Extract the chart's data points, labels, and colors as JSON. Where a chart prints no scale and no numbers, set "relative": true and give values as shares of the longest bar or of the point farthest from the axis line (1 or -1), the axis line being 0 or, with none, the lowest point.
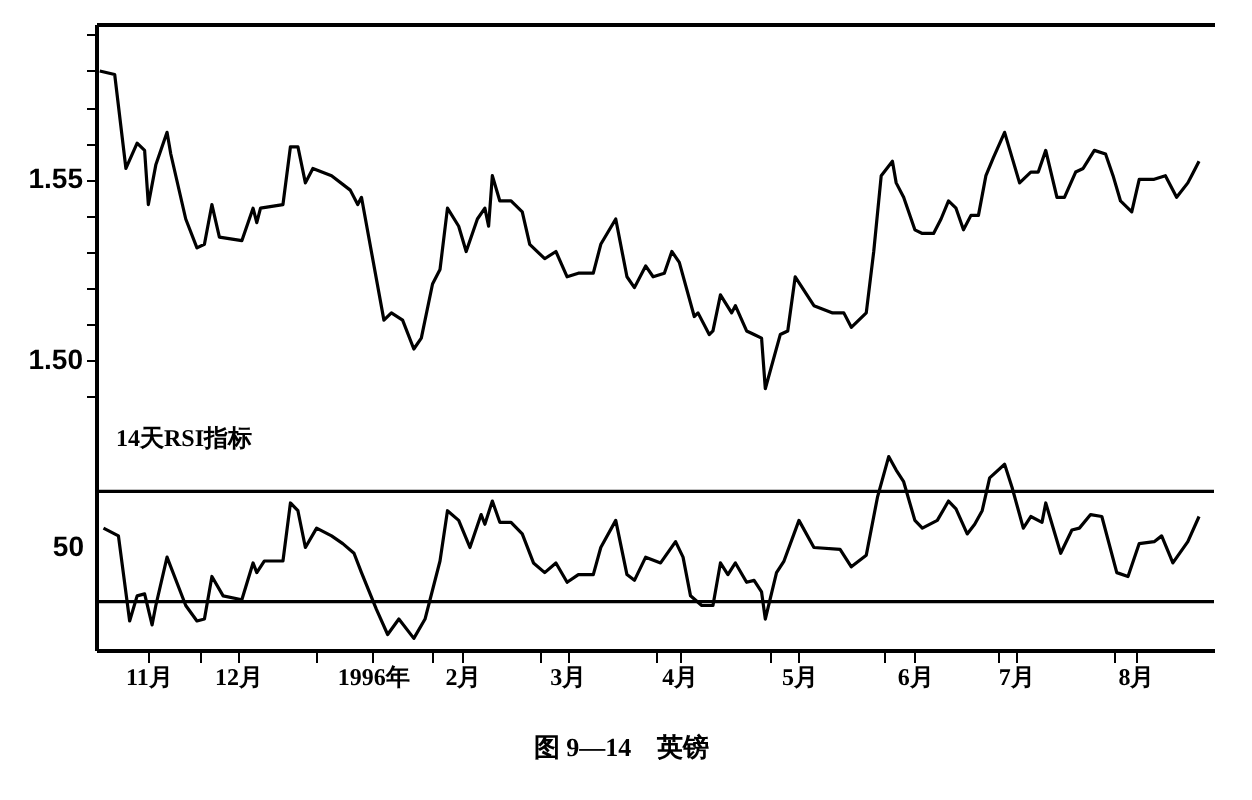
{
  "chart_data": [
    {
      "type": "line",
      "color": "#000000",
      "tick_labels": "y",
      "xlim": [
        "1995-11-03",
        "1996-08-28"
      ],
      "ylim": [
        1.485,
        1.593
      ],
      "yticks": [
        {
          "value": 1.49,
          "label": null
        },
        {
          "value": 1.5,
          "label": "1.50"
        },
        {
          "value": 1.51,
          "label": null
        },
        {
          "value": 1.52,
          "label": null
        },
        {
          "value": 1.53,
          "label": null
        },
        {
          "value": 1.54,
          "label": null
        },
        {
          "value": 1.55,
          "label": "1.55"
        },
        {
          "value": 1.56,
          "label": null
        },
        {
          "value": 1.57,
          "label": null
        },
        {
          "value": 1.58,
          "label": null
        },
        {
          "value": 1.59,
          "label": null
        }
      ],
      "x": [
        "1995-11-04",
        "1995-11-08",
        "1995-11-11",
        "1995-11-14",
        "1995-11-16",
        "1995-11-17",
        "1995-11-19",
        "1995-11-22",
        "1995-11-23",
        "1995-11-27",
        "1995-11-30",
        "1995-12-02",
        "1995-12-04",
        "1995-12-06",
        "1995-12-12",
        "1995-12-15",
        "1995-12-16",
        "1995-12-17",
        "1995-12-23",
        "1995-12-25",
        "1995-12-27",
        "1995-12-29",
        "1995-12-31",
        "1996-01-05",
        "1996-01-10",
        "1996-01-12",
        "1996-01-13",
        "1996-01-19",
        "1996-01-21",
        "1996-01-24",
        "1996-01-27",
        "1996-01-29",
        "1996-02-01",
        "1996-02-03",
        "1996-02-05",
        "1996-02-08",
        "1996-02-10",
        "1996-02-13",
        "1996-02-15",
        "1996-02-16",
        "1996-02-17",
        "1996-02-19",
        "1996-02-22",
        "1996-02-25",
        "1996-02-27",
        "1996-03-02",
        "1996-03-05",
        "1996-03-08",
        "1996-03-11",
        "1996-03-15",
        "1996-03-17",
        "1996-03-21",
        "1996-03-24",
        "1996-03-26",
        "1996-03-29",
        "1996-03-31",
        "1996-04-03",
        "1996-04-05",
        "1996-04-07",
        "1996-04-11",
        "1996-04-12",
        "1996-04-15",
        "1996-04-16",
        "1996-04-18",
        "1996-04-21",
        "1996-04-22",
        "1996-04-25",
        "1996-04-27",
        "1996-04-29",
        "1996-04-30",
        "1996-05-04",
        "1996-05-06",
        "1996-05-08",
        "1996-05-13",
        "1996-05-18",
        "1996-05-21",
        "1996-05-23",
        "1996-05-27",
        "1996-05-29",
        "1996-05-31",
        "1996-06-03",
        "1996-06-04",
        "1996-06-06",
        "1996-06-09",
        "1996-06-11",
        "1996-06-14",
        "1996-06-16",
        "1996-06-18",
        "1996-06-20",
        "1996-06-22",
        "1996-06-24",
        "1996-06-26",
        "1996-06-28",
        "1996-06-30",
        "1996-07-03",
        "1996-07-05",
        "1996-07-07",
        "1996-07-10",
        "1996-07-12",
        "1996-07-14",
        "1996-07-17",
        "1996-07-19",
        "1996-07-22",
        "1996-07-24",
        "1996-07-27",
        "1996-07-30",
        "1996-08-01",
        "1996-08-03",
        "1996-08-06",
        "1996-08-08",
        "1996-08-12",
        "1996-08-15",
        "1996-08-18",
        "1996-08-21",
        "1996-08-22",
        "1996-08-24"
      ],
      "values": [
        1.58,
        1.579,
        1.553,
        1.56,
        1.558,
        1.543,
        1.554,
        1.563,
        1.557,
        1.539,
        1.531,
        1.532,
        1.543,
        1.534,
        1.533,
        1.542,
        1.538,
        1.542,
        1.543,
        1.559,
        1.559,
        1.549,
        1.553,
        1.551,
        1.547,
        1.543,
        1.545,
        1.511,
        1.513,
        1.511,
        1.503,
        1.506,
        1.521,
        1.525,
        1.542,
        1.537,
        1.53,
        1.539,
        1.542,
        1.537,
        1.551,
        1.544,
        1.544,
        1.541,
        1.532,
        1.528,
        1.53,
        1.523,
        1.524,
        1.524,
        1.532,
        1.539,
        1.523,
        1.52,
        1.526,
        1.523,
        1.524,
        1.53,
        1.527,
        1.512,
        1.513,
        1.507,
        1.508,
        1.518,
        1.513,
        1.515,
        1.508,
        1.507,
        1.506,
        1.492,
        1.507,
        1.508,
        1.523,
        1.515,
        1.513,
        1.513,
        1.509,
        1.513,
        1.53,
        1.551,
        1.555,
        1.549,
        1.545,
        1.536,
        1.535,
        1.535,
        1.539,
        1.544,
        1.542,
        1.536,
        1.54,
        1.54,
        1.551,
        1.556,
        1.563,
        1.556,
        1.549,
        1.552,
        1.552,
        1.558,
        1.545,
        1.545,
        1.552,
        1.553,
        1.558,
        1.557,
        1.551,
        1.544,
        1.541,
        1.55,
        1.55,
        1.551,
        1.545,
        1.549,
        1.551,
        1.555
      ]
    },
    {
      "type": "line",
      "color": "#000000",
      "relative": true,
      "xlim": [
        "1995-11-03",
        "1996-08-28"
      ],
      "xticks": [
        {
          "value": "1995-11-17",
          "label": "11月"
        },
        {
          "value": "1995-12-01",
          "label": null
        },
        {
          "value": "1995-12-11",
          "label": "12月"
        },
        {
          "value": "1996-01-01",
          "label": null
        },
        {
          "value": "1996-01-16",
          "label": "1996年"
        },
        {
          "value": "1996-02-01",
          "label": null
        },
        {
          "value": "1996-02-09",
          "label": "2月"
        },
        {
          "value": "1996-03-01",
          "label": null
        },
        {
          "value": "1996-03-08",
          "label": "3月"
        },
        {
          "value": "1996-04-01",
          "label": null
        },
        {
          "value": "1996-04-07",
          "label": "4月"
        },
        {
          "value": "1996-05-01",
          "label": null
        },
        {
          "value": "1996-05-09",
          "label": "5月"
        },
        {
          "value": "1996-06-01",
          "label": null
        },
        {
          "value": "1996-06-09",
          "label": "6月"
        },
        {
          "value": "1996-07-01",
          "label": null
        },
        {
          "value": "1996-07-06",
          "label": "7月"
        },
        {
          "value": "1996-08-01",
          "label": null
        },
        {
          "value": "1996-08-07",
          "label": "8月"
        }
      ],
      "ref_lines": [
        {
          "axis": "y",
          "value": 0.82,
          "color": "#000000"
        },
        {
          "axis": "y",
          "value": 0.25,
          "color": "#000000"
        }
      ],
      "annotations": [
        "14天RSI指标",
        "图 9—14　英镑",
        "50"
      ],
      "x": [
        "1995-11-05",
        "1995-11-09",
        "1995-11-12",
        "1995-11-14",
        "1995-11-16",
        "1995-11-18",
        "1995-11-19",
        "1995-11-22",
        "1995-11-27",
        "1995-11-30",
        "1995-12-02",
        "1995-12-04",
        "1995-12-07",
        "1995-12-12",
        "1995-12-15",
        "1995-12-16",
        "1995-12-18",
        "1995-12-23",
        "1995-12-25",
        "1995-12-27",
        "1995-12-29",
        "1996-01-01",
        "1996-01-05",
        "1996-01-08",
        "1996-01-11",
        "1996-01-13",
        "1996-01-17",
        "1996-01-20",
        "1996-01-23",
        "1996-01-27",
        "1996-01-30",
        "1996-02-03",
        "1996-02-05",
        "1996-02-08",
        "1996-02-11",
        "1996-02-14",
        "1996-02-15",
        "1996-02-17",
        "1996-02-19",
        "1996-02-22",
        "1996-02-25",
        "1996-02-28",
        "1996-03-02",
        "1996-03-05",
        "1996-03-08",
        "1996-03-11",
        "1996-03-15",
        "1996-03-17",
        "1996-03-21",
        "1996-03-24",
        "1996-03-26",
        "1996-03-29",
        "1996-04-02",
        "1996-04-06",
        "1996-04-08",
        "1996-04-10",
        "1996-04-13",
        "1996-04-16",
        "1996-04-18",
        "1996-04-20",
        "1996-04-22",
        "1996-04-25",
        "1996-04-27",
        "1996-04-29",
        "1996-04-30",
        "1996-05-03",
        "1996-05-05",
        "1996-05-09",
        "1996-05-13",
        "1996-05-20",
        "1996-05-23",
        "1996-05-27",
        "1996-05-30",
        "1996-06-02",
        "1996-06-04",
        "1996-06-06",
        "1996-06-09",
        "1996-06-11",
        "1996-06-15",
        "1996-06-18",
        "1996-06-20",
        "1996-06-23",
        "1996-06-25",
        "1996-06-27",
        "1996-06-29",
        "1996-07-03",
        "1996-07-05",
        "1996-07-08",
        "1996-07-10",
        "1996-07-13",
        "1996-07-14",
        "1996-07-18",
        "1996-07-21",
        "1996-07-23",
        "1996-07-26",
        "1996-07-29",
        "1996-08-02",
        "1996-08-05",
        "1996-08-08",
        "1996-08-12",
        "1996-08-14",
        "1996-08-17",
        "1996-08-21",
        "1996-08-24"
      ],
      "values": [
        0.63,
        0.59,
        0.15,
        0.28,
        0.29,
        0.13,
        0.23,
        0.48,
        0.23,
        0.15,
        0.16,
        0.38,
        0.28,
        0.26,
        0.45,
        0.4,
        0.46,
        0.46,
        0.76,
        0.72,
        0.53,
        0.63,
        0.59,
        0.55,
        0.5,
        0.4,
        0.21,
        0.08,
        0.16,
        0.06,
        0.16,
        0.46,
        0.72,
        0.67,
        0.53,
        0.7,
        0.65,
        0.77,
        0.66,
        0.66,
        0.6,
        0.45,
        0.4,
        0.45,
        0.35,
        0.39,
        0.39,
        0.53,
        0.67,
        0.39,
        0.36,
        0.48,
        0.45,
        0.56,
        0.48,
        0.28,
        0.23,
        0.23,
        0.45,
        0.39,
        0.45,
        0.35,
        0.36,
        0.3,
        0.16,
        0.4,
        0.46,
        0.67,
        0.53,
        0.52,
        0.43,
        0.49,
        0.79,
        1,
        0.93,
        0.87,
        0.67,
        0.63,
        0.67,
        0.77,
        0.73,
        0.6,
        0.65,
        0.72,
        0.89,
        0.96,
        0.84,
        0.63,
        0.69,
        0.66,
        0.76,
        0.5,
        0.62,
        0.63,
        0.7,
        0.69,
        0.4,
        0.38,
        0.55,
        0.56,
        0.59,
        0.45,
        0.56,
        0.69
      ]
    }
  ]
}
